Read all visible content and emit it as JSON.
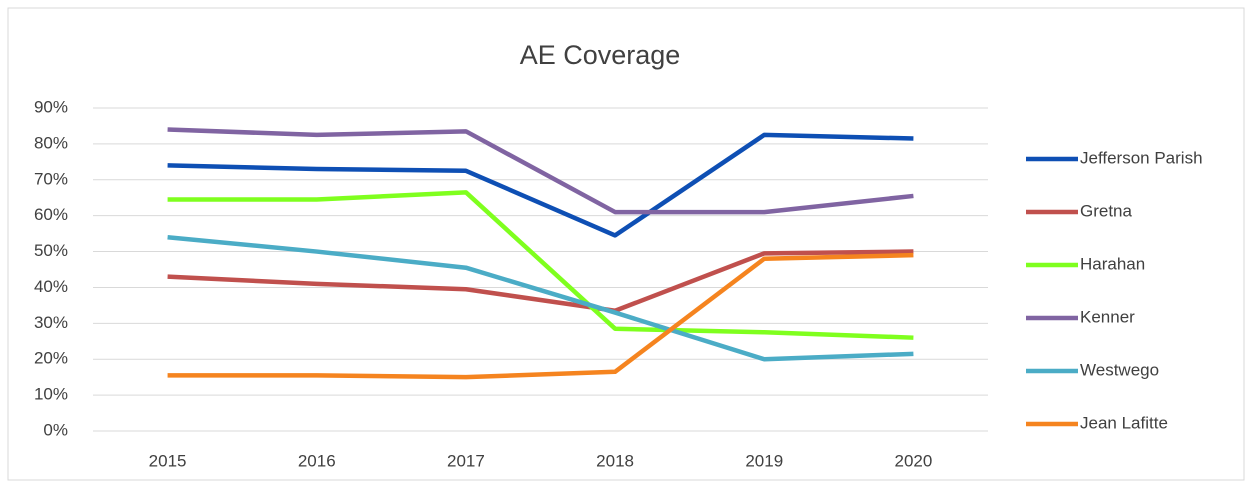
{
  "chart_data": {
    "type": "line",
    "title": "AE Coverage",
    "categories": [
      "2015",
      "2016",
      "2017",
      "2018",
      "2019",
      "2020"
    ],
    "series": [
      {
        "name": "Jefferson Parish",
        "color": "#0e4fb4",
        "values": [
          74,
          73,
          72.5,
          54.5,
          82.5,
          81.5
        ]
      },
      {
        "name": "Gretna",
        "color": "#c0504d",
        "values": [
          43,
          41,
          39.5,
          33.5,
          49.5,
          50
        ]
      },
      {
        "name": "Harahan",
        "color": "#7fff1e",
        "values": [
          64.5,
          64.5,
          66.5,
          28.5,
          27.5,
          26
        ]
      },
      {
        "name": "Kenner",
        "color": "#8064a2",
        "values": [
          84,
          82.5,
          83.5,
          61,
          61,
          65.5
        ]
      },
      {
        "name": "Westwego",
        "color": "#4bacc6",
        "values": [
          54,
          50,
          45.5,
          33,
          20,
          21.5
        ]
      },
      {
        "name": "Jean Lafitte",
        "color": "#f5841f",
        "values": [
          15.5,
          15.5,
          15,
          16.5,
          48,
          49
        ]
      }
    ],
    "ylim": [
      0,
      90
    ],
    "yticks": [
      {
        "value": 0,
        "label": "0%"
      },
      {
        "value": 10,
        "label": "10%"
      },
      {
        "value": 20,
        "label": "20%"
      },
      {
        "value": 30,
        "label": "30%"
      },
      {
        "value": 40,
        "label": "40%"
      },
      {
        "value": 50,
        "label": "50%"
      },
      {
        "value": 60,
        "label": "60%"
      },
      {
        "value": 70,
        "label": "70%"
      },
      {
        "value": 80,
        "label": "80%"
      },
      {
        "value": 90,
        "label": "90%"
      }
    ],
    "grid": true,
    "legend": "right"
  }
}
